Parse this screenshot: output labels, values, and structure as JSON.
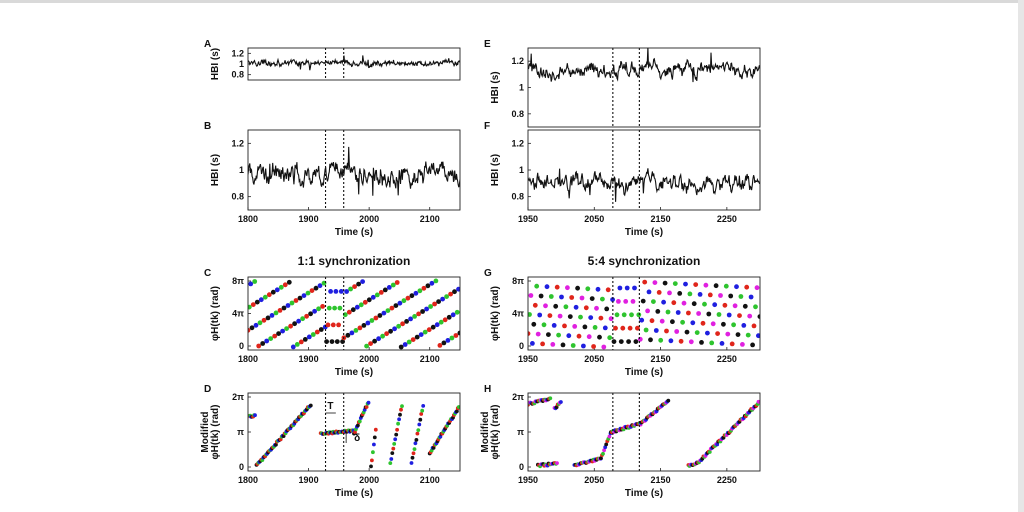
{
  "colors": {
    "red": "#e0251b",
    "green": "#2ec42e",
    "blue": "#1f1fe0",
    "black": "#111111",
    "magenta": "#e020e0"
  },
  "chart_data": [
    {
      "id": "A",
      "type": "line",
      "ylabel": "HBI (s)",
      "xlim": [
        1800,
        2150
      ],
      "ylim": [
        0.7,
        1.3
      ],
      "yticks": [
        "0.8",
        "1",
        "1.2"
      ],
      "mean": 1.02,
      "amp": 0.045,
      "vlines": [
        1928,
        1958
      ]
    },
    {
      "id": "B",
      "type": "line",
      "ylabel": "HBI (s)",
      "xlim": [
        1800,
        2150
      ],
      "ylim": [
        0.7,
        1.3
      ],
      "yticks": [
        "0.8",
        "1",
        "1.2"
      ],
      "mean": 0.96,
      "amp": 0.06,
      "vlines": [
        1928,
        1958
      ],
      "xlabel": "Time (s)",
      "xticks": [
        "1800",
        "1900",
        "2000",
        "2100"
      ]
    },
    {
      "id": "C",
      "type": "scatter",
      "title": "1:1 synchronization",
      "ylabel": "φH(tk) (rad)",
      "xlim": [
        1800,
        2150
      ],
      "yticks": [
        "0",
        "4π",
        "8π"
      ],
      "xlabel": "Time (s)",
      "xticks": [
        "1800",
        "1900",
        "2000",
        "2100"
      ],
      "vlines": [
        1928,
        1958
      ]
    },
    {
      "id": "D",
      "type": "scatter",
      "ylabel_top": "Modified",
      "ylabel": "φH(tk) (rad)",
      "xlim": [
        1800,
        2150
      ],
      "yticks": [
        "0",
        "π",
        "2π"
      ],
      "xlabel": "Time (s)",
      "xticks": [
        "1800",
        "1900",
        "2000",
        "2100"
      ],
      "vlines": [
        1928,
        1958
      ],
      "annotations": [
        "T",
        "δ"
      ]
    },
    {
      "id": "E",
      "type": "line",
      "ylabel": "HBI (s)",
      "xlim": [
        1950,
        2300
      ],
      "ylim": [
        0.7,
        1.3
      ],
      "yticks": [
        "0.8",
        "1",
        "1.2"
      ],
      "mean": 1.13,
      "amp": 0.045,
      "vlines": [
        2078,
        2118
      ]
    },
    {
      "id": "F",
      "type": "line",
      "ylabel": "HBI (s)",
      "xlim": [
        1950,
        2300
      ],
      "ylim": [
        0.7,
        1.3
      ],
      "yticks": [
        "0.8",
        "1",
        "1.2"
      ],
      "mean": 0.91,
      "amp": 0.05,
      "vlines": [
        2078,
        2118
      ],
      "xlabel": "Time (s)",
      "xticks": [
        "1950",
        "2050",
        "2150",
        "2250"
      ]
    },
    {
      "id": "G",
      "type": "scatter",
      "title": "5:4 synchronization",
      "ylabel": "φH(tk) (rad)",
      "xlim": [
        1950,
        2300
      ],
      "yticks": [
        "0",
        "4π",
        "8π"
      ],
      "xlabel": "Time (s)",
      "xticks": [
        "1950",
        "2050",
        "2150",
        "2250"
      ],
      "vlines": [
        2078,
        2118
      ]
    },
    {
      "id": "H",
      "type": "scatter",
      "ylabel_top": "Modified",
      "ylabel": "φH(tk) (rad)",
      "xlim": [
        1950,
        2300
      ],
      "yticks": [
        "0",
        "π",
        "2π"
      ],
      "xlabel": "Time (s)",
      "xticks": [
        "1950",
        "2050",
        "2150",
        "2250"
      ],
      "vlines": [
        2078,
        2118
      ]
    }
  ]
}
